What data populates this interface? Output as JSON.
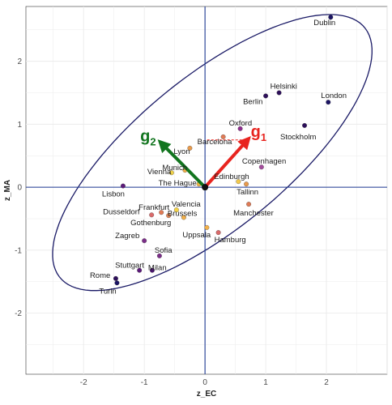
{
  "chart_data": {
    "type": "scatter",
    "xlabel": "z_EC",
    "ylabel": "z_MA",
    "xlim": [
      -2.95,
      3.0
    ],
    "ylim": [
      -2.97,
      2.87
    ],
    "x_ticks": [
      -2,
      -1,
      0,
      1,
      2
    ],
    "y_ticks": [
      -2,
      -1,
      0,
      1,
      2
    ],
    "grid": true,
    "background": "#ffffff",
    "grid_color": "#ebebeb",
    "axis_line_color": "#1f3a93",
    "ellipse_color": "#1a1a66",
    "points": [
      {
        "label": "Dublin",
        "x": 2.07,
        "y": 2.7,
        "color": "#1b1464"
      },
      {
        "label": "Helsinki",
        "x": 1.22,
        "y": 1.5,
        "color": "#2d0f5a"
      },
      {
        "label": "Berlin",
        "x": 1.0,
        "y": 1.45,
        "color": "#2d0f5a"
      },
      {
        "label": "London",
        "x": 2.03,
        "y": 1.35,
        "color": "#1b1464"
      },
      {
        "label": "Stockholm",
        "x": 1.64,
        "y": 0.98,
        "color": "#2d0f5a"
      },
      {
        "label": "Oxford",
        "x": 0.58,
        "y": 0.93,
        "color": "#8e2e8e"
      },
      {
        "label": "Barcelona",
        "x": 0.3,
        "y": 0.8,
        "color": "#e07b56"
      },
      {
        "label": "Lyon",
        "x": -0.25,
        "y": 0.62,
        "color": "#e89a4c"
      },
      {
        "label": "Copenhagen",
        "x": 0.93,
        "y": 0.32,
        "color": "#a34c9c"
      },
      {
        "label": "Vienna",
        "x": -0.55,
        "y": 0.23,
        "color": "#f0d24a"
      },
      {
        "label": "Munich",
        "x": -0.33,
        "y": 0.27,
        "color": "#f2b04a"
      },
      {
        "label": "Edinburgh",
        "x": 0.55,
        "y": 0.09,
        "color": "#f2c94c"
      },
      {
        "label": "The Hague",
        "x": -0.1,
        "y": 0.05,
        "color": "#f0b545"
      },
      {
        "label": "Tallinn",
        "x": 0.68,
        "y": 0.05,
        "color": "#e89a4c"
      },
      {
        "label": "Lisbon",
        "x": -1.35,
        "y": 0.02,
        "color": "#5c1b7a"
      },
      {
        "label": "Valencia",
        "x": -0.47,
        "y": -0.36,
        "color": "#f5d347"
      },
      {
        "label": "Frankfurt",
        "x": -0.72,
        "y": -0.4,
        "color": "#e07b56"
      },
      {
        "label": "Dusseldorf",
        "x": -0.88,
        "y": -0.44,
        "color": "#d96a6a"
      },
      {
        "label": "Gothenburg",
        "x": -0.6,
        "y": -0.45,
        "color": "#e58a5a"
      },
      {
        "label": "Manchester",
        "x": 0.72,
        "y": -0.27,
        "color": "#e07b56"
      },
      {
        "label": "Brussels",
        "x": -0.35,
        "y": -0.48,
        "color": "#f2b04a"
      },
      {
        "label": "Uppsala",
        "x": 0.03,
        "y": -0.64,
        "color": "#f2b04a"
      },
      {
        "label": "Hamburg",
        "x": 0.22,
        "y": -0.72,
        "color": "#d96a6a"
      },
      {
        "label": "Zagreb",
        "x": -1.0,
        "y": -0.85,
        "color": "#7b2e88"
      },
      {
        "label": "Sofia",
        "x": -0.75,
        "y": -1.09,
        "color": "#7b2e88"
      },
      {
        "label": "Stuttgart",
        "x": -1.08,
        "y": -1.32,
        "color": "#5c1b7a"
      },
      {
        "label": "Milan",
        "x": -0.87,
        "y": -1.32,
        "color": "#4a1570"
      },
      {
        "label": "Rome",
        "x": -1.47,
        "y": -1.45,
        "color": "#2d0f5a"
      },
      {
        "label": "Turin",
        "x": -1.45,
        "y": -1.52,
        "color": "#1b1464"
      }
    ],
    "vectors": [
      {
        "name": "g1",
        "text": "g",
        "sub": "1",
        "x": 0.7,
        "y": 0.75,
        "color": "#e8241f"
      },
      {
        "name": "g2",
        "text": "g",
        "sub": "2",
        "x": -0.72,
        "y": 0.7,
        "color": "#12751f"
      }
    ],
    "ellipse": {
      "cx": 0.12,
      "cy": 0.55,
      "rx": 3.2,
      "ry": 1.22,
      "angle_deg": 38
    }
  }
}
